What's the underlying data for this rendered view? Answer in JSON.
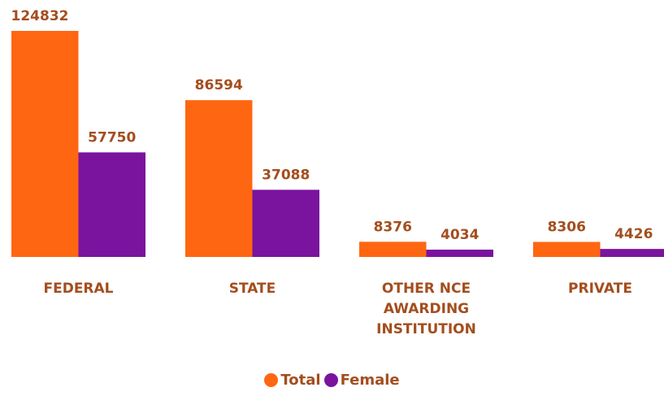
{
  "chart_data": {
    "type": "bar",
    "categories": [
      "FEDERAL",
      "STATE",
      "OTHER NCE AWARDING INSTITUTION",
      "PRIVATE"
    ],
    "series": [
      {
        "name": "Total",
        "color": "#ff6611",
        "values": [
          124832,
          86594,
          8376,
          8306
        ]
      },
      {
        "name": "Female",
        "color": "#7a139e",
        "values": [
          57750,
          37088,
          4034,
          4426
        ]
      }
    ]
  }
}
